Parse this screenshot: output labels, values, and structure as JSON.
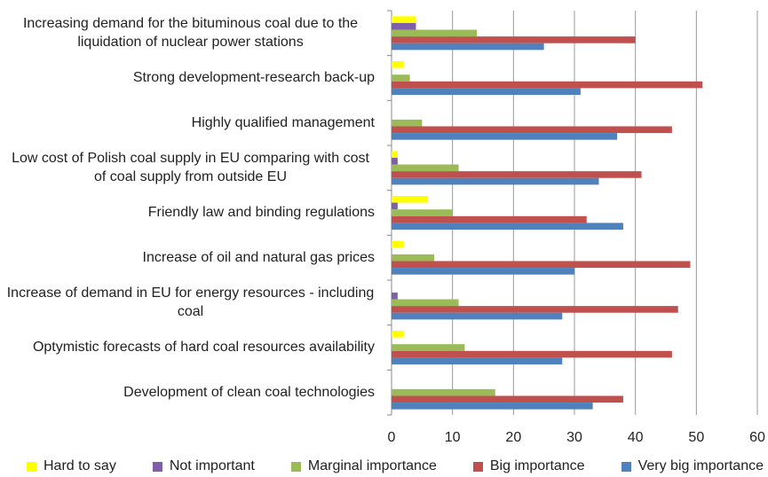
{
  "chart_data": {
    "type": "hbar",
    "categories": [
      "Increasing demand for the bituminous coal due to the liquidation of nuclear power stations",
      "Strong development-research back-up",
      "Highly qualified management",
      "Low cost of Polish coal supply in EU comparing with cost of coal supply from outside EU",
      "Friendly law and binding regulations",
      "Increase of oil and natural gas prices",
      "Increase of demand in EU for energy resources - including coal",
      "Optymistic forecasts of hard coal resources availability",
      "Development of clean coal technologies"
    ],
    "series": [
      {
        "name": "Hard to say",
        "color": "#ffff00",
        "values": [
          4,
          2,
          0,
          1,
          6,
          2,
          0,
          2,
          0
        ]
      },
      {
        "name": "Not important",
        "color": "#7f5fa8",
        "values": [
          4,
          0,
          0,
          1,
          1,
          0,
          1,
          0,
          0
        ]
      },
      {
        "name": "Marginal importance",
        "color": "#9bbb59",
        "values": [
          14,
          3,
          5,
          11,
          10,
          7,
          11,
          12,
          17
        ]
      },
      {
        "name": "Big importance",
        "color": "#c0504d",
        "values": [
          40,
          51,
          46,
          41,
          32,
          49,
          47,
          46,
          38
        ]
      },
      {
        "name": "Very big importance",
        "color": "#4f81bd",
        "values": [
          25,
          31,
          37,
          34,
          38,
          30,
          28,
          28,
          33
        ]
      }
    ],
    "xlim": [
      0,
      60
    ],
    "xticks": [
      0,
      10,
      20,
      30,
      40,
      50,
      60
    ],
    "grid": true,
    "legend": "bottom"
  }
}
